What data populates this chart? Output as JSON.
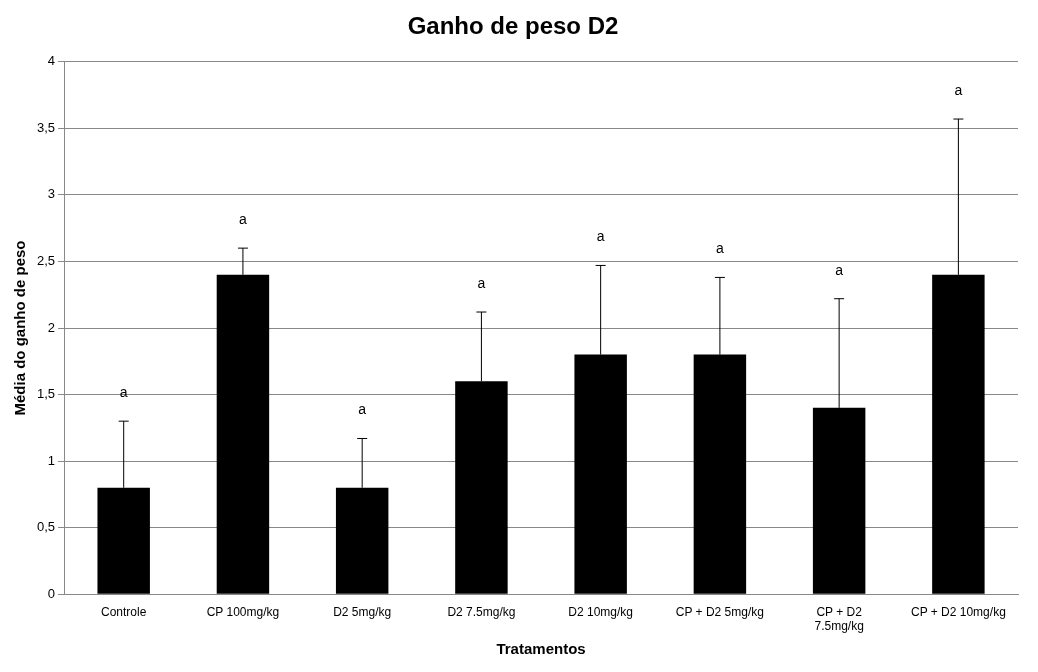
{
  "chart_data": {
    "type": "bar",
    "title": "Ganho de peso D2",
    "xlabel": "Tratamentos",
    "ylabel": "Média do ganho de peso",
    "categories": [
      "Controle",
      "CP 100mg/kg",
      "D2 5mg/kg",
      "D2 7.5mg/kg",
      "D2 10mg/kg",
      "CP + D2 5mg/kg",
      "CP + D2 7.5mg/kg",
      "CP + D2 10mg/kg"
    ],
    "values": [
      0.8,
      2.4,
      0.8,
      1.6,
      1.8,
      1.8,
      1.4,
      2.4
    ],
    "errors": [
      [
        0.8,
        1.3
      ],
      [
        2.4,
        2.6
      ],
      [
        0.8,
        1.17
      ],
      [
        1.6,
        2.12
      ],
      [
        1.8,
        2.47
      ],
      [
        1.8,
        2.38
      ],
      [
        1.4,
        2.22
      ],
      [
        2.4,
        3.57
      ]
    ],
    "color": "#000000",
    "ylim": [
      0,
      4
    ],
    "yticks": [
      0,
      {
        "value": 0.5,
        "label": "0,5"
      },
      1,
      {
        "value": 1.5,
        "label": "1,5"
      },
      2,
      {
        "value": 2.5,
        "label": "2,5"
      },
      3,
      {
        "value": 3.5,
        "label": "3,5"
      },
      4
    ],
    "grid": "y",
    "legend": false,
    "annotations": [
      "a",
      "a",
      "a",
      "a",
      "a",
      "a",
      "a",
      "a"
    ]
  }
}
